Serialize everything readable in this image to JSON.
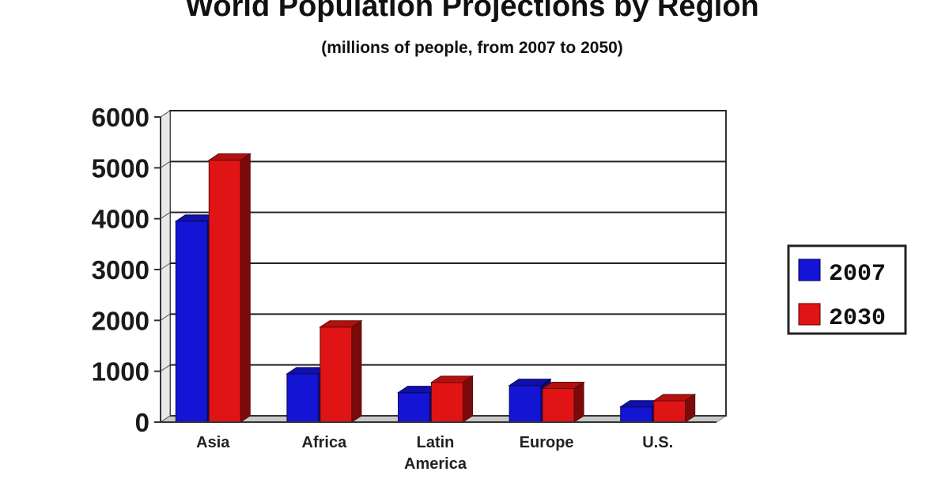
{
  "chart_data": {
    "type": "bar",
    "title": "World Population Projections by Region",
    "subtitle": "(millions of people, from 2007 to 2050)",
    "categories": [
      [
        "Asia"
      ],
      [
        "Africa"
      ],
      [
        "Latin",
        "America"
      ],
      [
        "Europe"
      ],
      [
        "U.S."
      ]
    ],
    "series": [
      {
        "name": "2007",
        "values": [
          3950,
          950,
          580,
          720,
          300
        ],
        "color": "#1414d4"
      },
      {
        "name": "2030",
        "values": [
          5150,
          1870,
          780,
          660,
          420
        ],
        "color": "#e01414"
      }
    ],
    "ylim": [
      0,
      6000
    ],
    "yticks": [
      0,
      1000,
      2000,
      3000,
      4000,
      5000,
      6000
    ],
    "grid": true,
    "legend_position": "right",
    "xlabel": "",
    "ylabel": ""
  }
}
